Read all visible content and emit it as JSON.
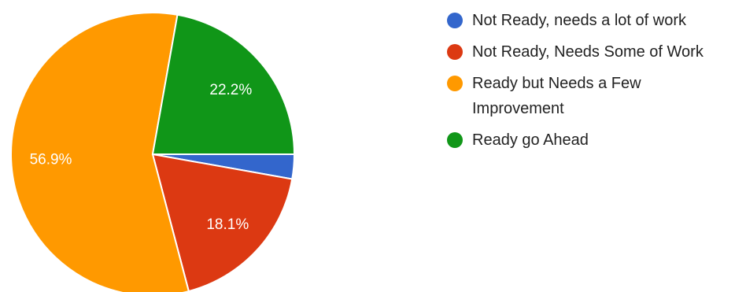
{
  "chart_data": {
    "type": "pie",
    "title": "",
    "slices": [
      {
        "label": "Not Ready, needs a lot of work",
        "value": 2.8,
        "color": "#3366cc",
        "display": ""
      },
      {
        "label": "Not Ready, Needs Some of Work",
        "value": 18.1,
        "color": "#dc3912",
        "display": "18.1%"
      },
      {
        "label": "Ready but Needs a Few Improvement",
        "value": 56.9,
        "color": "#ff9900",
        "display": "56.9%"
      },
      {
        "label": "Ready go Ahead",
        "value": 22.2,
        "color": "#109618",
        "display": "22.2%"
      }
    ],
    "legend_position": "right"
  }
}
